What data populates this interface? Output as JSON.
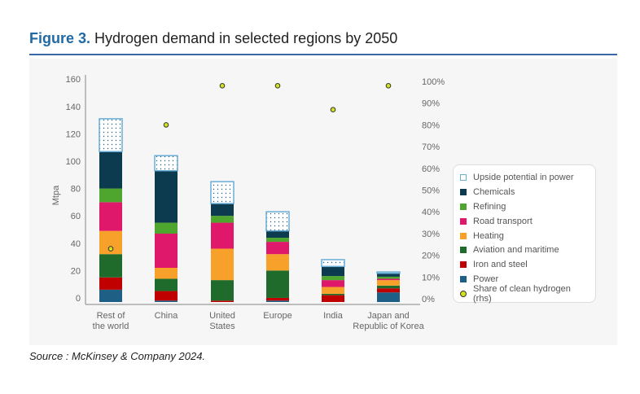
{
  "figure_label": "Figure 3.",
  "title": "Hydrogen demand in selected regions by 2050",
  "source": "Source : McKinsey & Company 2024.",
  "chart_data": {
    "type": "bar",
    "stacked": true,
    "title": "Hydrogen demand in selected regions by 2050",
    "ylabel": "Mtpa",
    "ylim": [
      0,
      160
    ],
    "yticks": [
      "0",
      "20",
      "40",
      "60",
      "80",
      "100",
      "120",
      "140",
      "160"
    ],
    "y2lim": [
      0,
      100
    ],
    "y2ticks": [
      "0%",
      "10%",
      "20%",
      "30%",
      "40%",
      "50%",
      "60%",
      "70%",
      "80%",
      "90%",
      "100%"
    ],
    "grid": false,
    "legend_placement": "right",
    "categories": [
      [
        "Rest of",
        "the world"
      ],
      [
        "China"
      ],
      [
        "United",
        "States"
      ],
      [
        "Europe"
      ],
      [
        "India"
      ],
      [
        "Japan and",
        "Republic of Korea"
      ]
    ],
    "series": [
      {
        "name": "Power",
        "color": "#1e5f86",
        "values": [
          9,
          1,
          0,
          1,
          0,
          7
        ]
      },
      {
        "name": "Iron and steel",
        "color": "#c00000",
        "values": [
          9,
          7,
          1,
          2,
          5,
          3
        ]
      },
      {
        "name": "Aviation and maritime",
        "color": "#1f6b2b",
        "values": [
          17,
          9,
          15,
          20,
          1,
          2
        ]
      },
      {
        "name": "Heating",
        "color": "#f7a12b",
        "values": [
          17,
          8,
          23,
          12,
          5,
          4
        ]
      },
      {
        "name": "Road transport",
        "color": "#e0186c",
        "values": [
          21,
          25,
          19,
          9,
          5,
          1
        ]
      },
      {
        "name": "Refining",
        "color": "#4ea62f",
        "values": [
          10,
          8,
          5,
          3,
          3,
          1.5
        ]
      },
      {
        "name": "Chemicals",
        "color": "#0c3a4f",
        "values": [
          27,
          38,
          9,
          5,
          7,
          2.5
        ]
      },
      {
        "name": "Upside potential in power",
        "color": "#6aaed6",
        "pattern": "dotted",
        "values": [
          24,
          11,
          16,
          14,
          5,
          1
        ]
      }
    ],
    "line_series": {
      "name": "Share of clean hydrogen (rhs)",
      "color": "#d4e21b",
      "axis": "right",
      "values": [
        23,
        80,
        98,
        98,
        87,
        98
      ]
    },
    "legend_order": [
      "Upside potential in power",
      "Chemicals",
      "Refining",
      "Road transport",
      "Heating",
      "Aviation and maritime",
      "Iron and steel",
      "Power",
      "Share of clean hydrogen (rhs)"
    ]
  }
}
